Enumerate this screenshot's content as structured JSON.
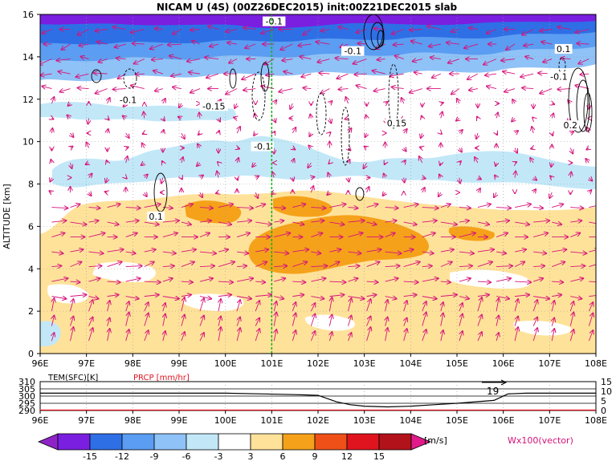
{
  "title": "NICAM U (4S) (00Z26DEC2015) init:00Z21DEC2015 slab",
  "ylabel": "ALTITUDE [km]",
  "units_label": "[m/s]",
  "vector_label": "Wx100(vector)",
  "colors": {
    "vector": "#d6127a",
    "section_line": "#14b414",
    "sub_temp": "#000000",
    "sub_prcp": "#e0141e",
    "fill_m15": "#7a1fe0",
    "fill_m12": "#2e6fe6",
    "fill_m9": "#5a9df2",
    "fill_m6": "#8fc2f7",
    "fill_m3": "#c2e8f8",
    "fill_p3": "#ffe29a",
    "fill_p6": "#f5a21a",
    "fill_p9": "#ee5018",
    "fill_p12": "#e0141e",
    "fill_p15": "#b2121a"
  },
  "chart_data": {
    "type": "heatmap",
    "title": "NICAM U (4S) (00Z26DEC2015) init:00Z21DEC2015 slab",
    "xlabel": "",
    "ylabel": "ALTITUDE [km]",
    "x_ticks": [
      "96E",
      "97E",
      "98E",
      "99E",
      "100E",
      "101E",
      "102E",
      "103E",
      "104E",
      "105E",
      "106E",
      "107E",
      "108E"
    ],
    "x_range": [
      96,
      108
    ],
    "y_ticks": [
      "0",
      "2",
      "4",
      "6",
      "8",
      "10",
      "12",
      "14",
      "16"
    ],
    "y_range": [
      0,
      16
    ],
    "section_line_lon": 101,
    "contour_labels": [
      {
        "text": "-0.1",
        "lon": 101.05,
        "alt": 15.6
      },
      {
        "text": "-0.1",
        "lon": 97.9,
        "alt": 11.9
      },
      {
        "text": "-0.15",
        "lon": 99.75,
        "alt": 11.6
      },
      {
        "text": "-0.1",
        "lon": 102.75,
        "alt": 14.2
      },
      {
        "text": "-0.1",
        "lon": 107.2,
        "alt": 13.0
      },
      {
        "text": "-0.1",
        "lon": 100.8,
        "alt": 9.7
      },
      {
        "text": "0.15",
        "lon": 103.7,
        "alt": 10.8
      },
      {
        "text": "0.1",
        "lon": 98.5,
        "alt": 6.4
      },
      {
        "text": "0.1",
        "lon": 107.3,
        "alt": 14.3
      },
      {
        "text": "0.2",
        "lon": 107.45,
        "alt": 10.7
      }
    ],
    "colorbar": {
      "levels": [
        "-15",
        "-12",
        "-9",
        "-6",
        "-3",
        "3",
        "6",
        "9",
        "12",
        "15"
      ],
      "units": "[m/s]"
    },
    "subplot": {
      "left_label": "TEM(SFC)[K]",
      "right_label": "PRCP [mm/hr]",
      "left_ticks": [
        "290",
        "295",
        "300",
        "305",
        "310"
      ],
      "right_ticks": [
        "0",
        "5",
        "10",
        "15"
      ],
      "annotation": "19",
      "temperature_K": {
        "lon": [
          96,
          97,
          98,
          99,
          100,
          100.8,
          101.5,
          102.0,
          102.4,
          102.7,
          103.0,
          103.5,
          104.0,
          104.5,
          105.0,
          105.8,
          106.1,
          106.5,
          107,
          108
        ],
        "values": [
          302,
          302,
          302,
          302,
          302,
          301.5,
          301,
          300.5,
          296,
          294,
          293,
          292.5,
          293,
          294,
          295,
          297,
          301.5,
          302,
          302,
          302
        ]
      },
      "precipitation_mm_hr": {
        "lon": [
          96,
          108
        ],
        "values": [
          0,
          0
        ]
      }
    }
  }
}
